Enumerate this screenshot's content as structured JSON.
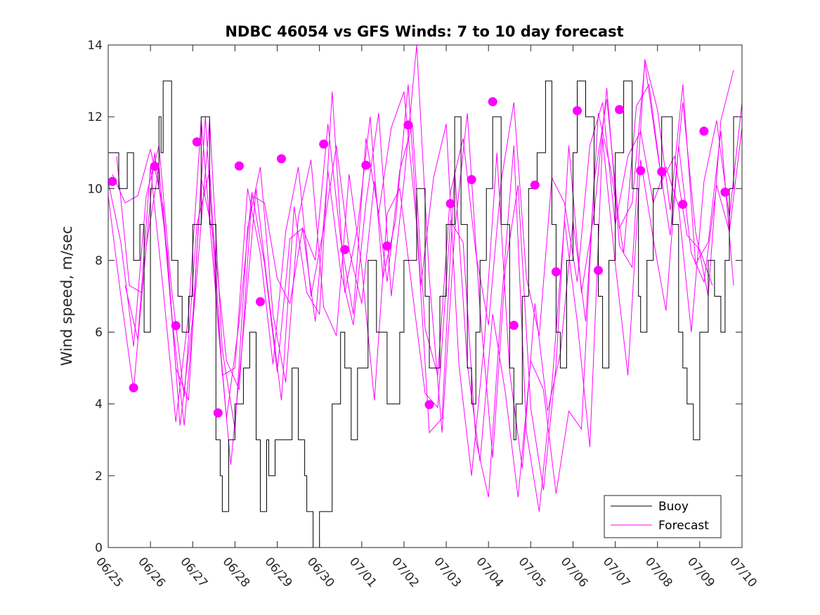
{
  "chart_data": {
    "type": "line",
    "title": "NDBC 46054 vs GFS Winds: 7 to 10 day forecast",
    "xlabel": "",
    "ylabel": "Wind speed, m/sec",
    "xlim": [
      "06/25",
      "07/10"
    ],
    "ylim": [
      0,
      14
    ],
    "yticks": [
      0,
      2,
      4,
      6,
      8,
      10,
      12,
      14
    ],
    "xticks": [
      "06/25",
      "06/26",
      "06/27",
      "06/28",
      "06/29",
      "06/30",
      "07/01",
      "07/02",
      "07/03",
      "07/04",
      "07/05",
      "07/06",
      "07/07",
      "07/08",
      "07/09",
      "07/10"
    ],
    "grid": false,
    "legend_position": "bottom-right",
    "colors": {
      "buoy": "#000000",
      "forecast": "#ff00ff"
    },
    "buoy": {
      "name": "Buoy",
      "x_days_after_06_25": [
        0,
        0.25,
        0.45,
        0.6,
        0.75,
        0.85,
        1.0,
        1.2,
        1.25,
        1.3,
        1.5,
        1.65,
        1.75,
        1.9,
        2.0,
        2.2,
        2.4,
        2.55,
        2.65,
        2.7,
        2.85,
        3.0,
        3.2,
        3.35,
        3.5,
        3.6,
        3.75,
        3.8,
        3.95,
        4.15,
        4.35,
        4.5,
        4.65,
        4.7,
        4.85,
        5.0,
        5.3,
        5.5,
        5.6,
        5.75,
        5.9,
        6.15,
        6.35,
        6.6,
        6.75,
        6.9,
        7.0,
        7.3,
        7.5,
        7.6,
        7.7,
        7.85,
        8.0,
        8.2,
        8.35,
        8.5,
        8.6,
        8.7,
        8.8,
        8.95,
        9.1,
        9.3,
        9.5,
        9.6,
        9.65,
        9.8,
        9.95,
        10.15,
        10.35,
        10.5,
        10.6,
        10.7,
        10.85,
        11.0,
        11.1,
        11.3,
        11.5,
        11.6,
        11.7,
        11.85,
        12.0,
        12.2,
        12.4,
        12.55,
        12.6,
        12.75,
        12.9,
        13.1,
        13.35,
        13.5,
        13.6,
        13.7,
        13.85,
        14.0,
        14.2,
        14.35,
        14.5,
        14.6,
        14.7,
        14.8,
        14.9
      ],
      "y": [
        11,
        10,
        11,
        8,
        9,
        6,
        10,
        12,
        11,
        13,
        8,
        7,
        6,
        7,
        9,
        12,
        9,
        3,
        2,
        1,
        3,
        4,
        5,
        6,
        3,
        1,
        3,
        2,
        3,
        3,
        5,
        3,
        2,
        1,
        0,
        1,
        4,
        6,
        5,
        3,
        5,
        8,
        6,
        4,
        4,
        6,
        8,
        10,
        7,
        5,
        5,
        7,
        9,
        12,
        9,
        5,
        4,
        6,
        8,
        10,
        12,
        9,
        5,
        3,
        4,
        7,
        10,
        11,
        13,
        9,
        6,
        5,
        8,
        11,
        13,
        12,
        9,
        7,
        5,
        8,
        11,
        13,
        10,
        7,
        6,
        8,
        10,
        12,
        9,
        6,
        5,
        4,
        3,
        6,
        8,
        7,
        6,
        8,
        10,
        12,
        12
      ]
    },
    "forecast_series": [
      {
        "x_days_after_06_25": [
          0.0,
          0.3,
          0.6,
          0.9,
          1.2,
          1.5,
          1.8,
          2.1,
          2.4,
          2.7,
          3.0,
          3.3,
          3.6,
          3.9,
          4.2,
          4.5,
          4.8,
          5.1,
          5.4,
          5.7,
          6.0,
          6.3,
          6.6,
          6.9,
          7.2,
          7.5,
          7.8,
          8.1,
          8.4,
          8.7,
          9.0,
          9.3,
          9.6,
          9.9,
          10.2,
          10.5,
          10.8,
          11.1,
          11.4,
          11.7,
          12.0,
          12.3,
          12.6,
          12.9,
          13.2,
          13.5,
          13.8,
          14.1,
          14.4,
          14.7,
          15.0
        ],
        "y": [
          10.2,
          8.5,
          5.6,
          9.8,
          11.2,
          7.2,
          4.2,
          9.0,
          10.5,
          4.8,
          5.0,
          10.0,
          8.2,
          5.1,
          8.8,
          10.6,
          7.0,
          8.9,
          11.2,
          8.3,
          6.8,
          10.2,
          7.4,
          10.5,
          11.8,
          6.1,
          4.8,
          9.9,
          11.4,
          8.2,
          6.2,
          10.2,
          12.4,
          7.5,
          5.9,
          10.3,
          9.6,
          7.4,
          11.2,
          12.4,
          9.0,
          10.9,
          11.6,
          9.6,
          10.6,
          9.5,
          6.0,
          10.2,
          11.9,
          9.2,
          12.4
        ]
      },
      {
        "x_days_after_06_25": [
          0.0,
          0.3,
          0.6,
          0.9,
          1.2,
          1.5,
          1.8,
          2.1,
          2.4,
          2.7,
          3.0,
          3.3,
          3.6,
          3.9,
          4.2,
          4.5,
          4.8,
          5.1,
          5.4,
          5.7,
          6.0,
          6.3,
          6.6,
          6.9,
          7.2,
          7.5,
          7.8,
          8.1,
          8.4,
          8.7,
          9.0,
          9.3,
          9.6,
          9.9,
          10.2,
          10.5,
          10.8,
          11.1,
          11.4,
          11.7,
          12.0,
          12.3,
          12.6,
          12.9,
          13.2,
          13.5,
          13.8,
          14.1,
          14.4,
          14.7,
          15.0
        ],
        "y": [
          9.8,
          7.0,
          4.4,
          8.4,
          10.6,
          6.5,
          3.4,
          7.6,
          11.9,
          5.5,
          3.3,
          8.9,
          10.6,
          6.5,
          4.6,
          9.2,
          10.8,
          6.7,
          5.9,
          10.4,
          7.8,
          4.1,
          9.3,
          10.0,
          7.1,
          4.3,
          3.9,
          9.1,
          8.5,
          3.0,
          1.4,
          6.7,
          11.2,
          3.2,
          1.0,
          4.5,
          9.1,
          6.3,
          2.8,
          11.4,
          7.9,
          4.8,
          10.8,
          8.6,
          6.6,
          11.2,
          8.2,
          7.4,
          10.1,
          8.8,
          11.7
        ]
      },
      {
        "x_days_after_06_25": [
          0.2,
          0.5,
          0.8,
          1.1,
          1.4,
          1.7,
          2.0,
          2.3,
          2.6,
          2.9,
          3.2,
          3.5,
          3.8,
          4.1,
          4.4,
          4.7,
          5.0,
          5.3,
          5.6,
          5.9,
          6.2,
          6.5,
          6.8,
          7.1,
          7.4,
          7.7,
          8.0,
          8.3,
          8.6,
          8.9,
          9.2,
          9.5,
          9.8,
          10.1,
          10.4,
          10.7,
          11.0,
          11.3,
          11.6,
          11.9,
          12.2,
          12.5,
          12.8,
          13.1,
          13.4,
          13.7,
          14.0,
          14.3
        ],
        "y": [
          10.9,
          7.3,
          7.1,
          11.0,
          8.2,
          3.4,
          6.4,
          12.0,
          6.2,
          2.3,
          6.0,
          10.0,
          7.0,
          4.1,
          9.5,
          7.1,
          6.5,
          12.7,
          7.1,
          8.9,
          12.0,
          7.5,
          9.1,
          12.9,
          7.3,
          10.3,
          11.8,
          5.1,
          2.0,
          5.7,
          11.0,
          4.9,
          2.2,
          6.8,
          3.8,
          5.4,
          9.1,
          6.3,
          12.1,
          10.5,
          8.2,
          12.3,
          12.9,
          10.2,
          10.9,
          8.7,
          8.3,
          7.3
        ]
      },
      {
        "x_days_after_06_25": [
          0.1,
          0.4,
          0.7,
          1.0,
          1.3,
          1.6,
          1.9,
          2.2,
          2.5,
          2.8,
          3.1,
          3.4,
          3.7,
          4.0,
          4.3,
          4.6,
          4.9,
          5.2,
          5.5,
          5.8,
          6.1,
          6.4,
          6.7,
          7.0,
          7.3,
          7.6,
          7.9,
          8.2,
          8.5,
          8.8,
          9.1,
          9.4,
          9.7,
          10.0,
          10.3,
          10.6,
          10.9,
          11.2,
          11.5,
          11.8,
          12.1,
          12.4,
          12.7,
          13.0,
          13.3,
          13.6,
          13.9,
          14.2,
          14.5,
          14.8
        ],
        "y": [
          10.4,
          9.6,
          9.8,
          11.1,
          9.5,
          5.0,
          4.1,
          10.3,
          8.6,
          5.2,
          4.4,
          9.8,
          9.6,
          7.5,
          6.8,
          8.9,
          8.0,
          11.8,
          8.6,
          6.5,
          11.4,
          9.3,
          11.7,
          12.7,
          9.0,
          3.2,
          3.6,
          10.5,
          5.1,
          2.4,
          6.5,
          4.3,
          1.4,
          5.2,
          4.4,
          1.5,
          3.8,
          3.3,
          10.2,
          12.5,
          8.9,
          9.6,
          13.5,
          11.0,
          8.7,
          12.4,
          8.8,
          7.0,
          11.9,
          13.3
        ]
      },
      {
        "x_days_after_06_25": [
          0.4,
          0.7,
          1.0,
          1.3,
          1.6,
          1.9,
          2.2,
          2.5,
          2.8,
          3.1,
          3.4,
          3.7,
          4.0,
          4.3,
          4.6,
          4.9,
          5.2,
          5.5,
          5.8,
          6.1,
          6.4,
          6.7,
          7.0,
          7.3,
          7.6,
          7.9,
          8.2,
          8.5,
          8.8,
          9.1,
          9.4,
          9.7,
          10.0,
          10.3,
          10.6,
          10.9,
          11.2,
          11.5,
          11.8,
          12.1,
          12.4,
          12.7,
          13.0,
          13.3,
          13.6,
          13.9,
          14.2,
          14.5,
          14.8
        ],
        "y": [
          7.3,
          5.8,
          10.6,
          7.2,
          3.5,
          6.5,
          11.9,
          7.7,
          3.6,
          6.3,
          9.9,
          7.9,
          4.9,
          8.6,
          8.9,
          6.3,
          10.5,
          7.7,
          6.2,
          9.6,
          12.1,
          7.0,
          10.2,
          14.0,
          7.5,
          3.2,
          8.8,
          12.1,
          6.6,
          2.5,
          7.8,
          10.1,
          3.9,
          1.6,
          5.1,
          11.2,
          7.1,
          9.3,
          12.8,
          8.4,
          7.8,
          13.6,
          12.2,
          9.4,
          12.9,
          7.9,
          8.5,
          11.6,
          7.3
        ]
      }
    ],
    "forecast_legend_name": "Forecast",
    "markers": {
      "x_days_after_06_25": [
        0.1,
        0.6,
        1.1,
        1.6,
        2.1,
        2.6,
        3.1,
        3.6,
        4.1,
        5.1,
        5.6,
        6.1,
        6.6,
        7.1,
        7.6,
        8.1,
        8.6,
        9.1,
        9.6,
        10.1,
        10.6,
        11.1,
        11.6,
        12.1,
        12.6,
        13.1,
        13.6,
        14.1,
        14.6
      ],
      "y": [
        10.2,
        4.45,
        10.62,
        6.18,
        11.3,
        3.75,
        10.63,
        6.85,
        10.83,
        11.24,
        8.3,
        10.65,
        8.4,
        11.77,
        3.98,
        9.58,
        10.25,
        12.42,
        6.19,
        10.1,
        7.68,
        12.17,
        7.72,
        12.2,
        10.5,
        10.47,
        9.56,
        11.6,
        9.9
      ]
    },
    "legend": [
      "Buoy",
      "Forecast"
    ]
  }
}
